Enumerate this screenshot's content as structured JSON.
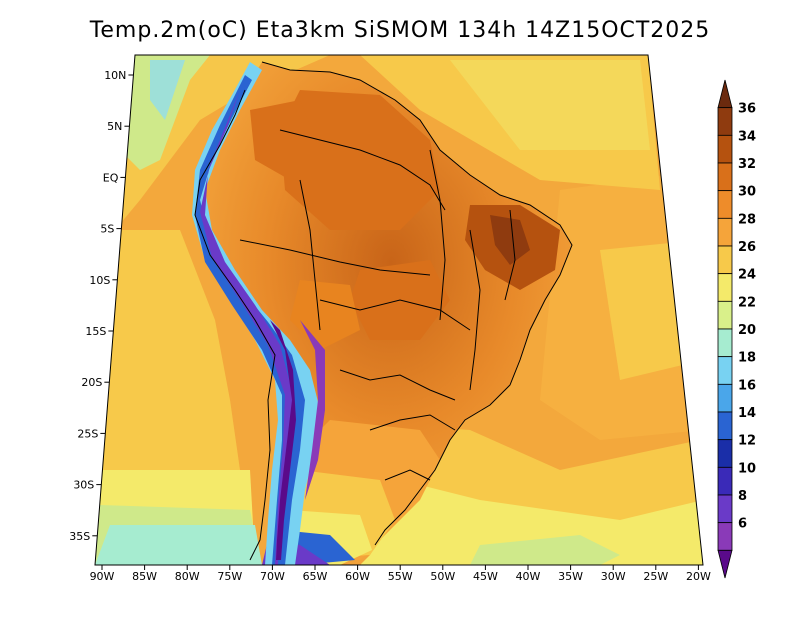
{
  "title": "Temp.2m(oC) Eta3km SiSMOM 134h 14Z15OCT2025",
  "map": {
    "lat_labels": [
      "10N",
      "5N",
      "EQ",
      "5S",
      "10S",
      "15S",
      "20S",
      "25S",
      "30S",
      "35S"
    ],
    "lon_labels": [
      "90W",
      "85W",
      "80W",
      "75W",
      "70W",
      "65W",
      "60W",
      "55W",
      "50W",
      "45W",
      "40W",
      "35W",
      "30W",
      "25W",
      "20W"
    ]
  },
  "colorbar": {
    "labels": [
      "36",
      "34",
      "32",
      "30",
      "28",
      "26",
      "24",
      "22",
      "20",
      "18",
      "16",
      "14",
      "12",
      "10",
      "8",
      "6"
    ],
    "colors": [
      "#6b2a0e",
      "#8f3b0f",
      "#b5520f",
      "#d9701a",
      "#ee8c2a",
      "#f5a43a",
      "#f7c94a",
      "#f4ea6a",
      "#d9f08a",
      "#a6ecd0",
      "#78d2f2",
      "#4aa6ea",
      "#2a64d2",
      "#1a2ea8",
      "#3a2ab8",
      "#6a3ac8",
      "#8a3ab8",
      "#5a0a8a"
    ]
  }
}
